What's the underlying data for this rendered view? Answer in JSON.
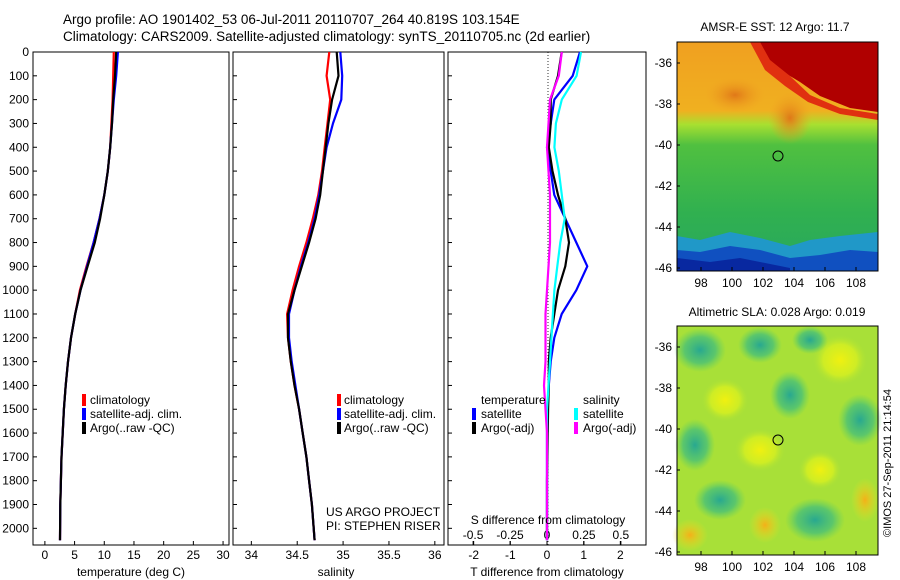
{
  "header": {
    "line1": "Argo profile: AO 1901402_53 06-Jul-2011 20110707_264 40.819S 103.154E",
    "line2": "Climatology: CARS2009. Satellite-adjusted climatology: synTS_20110705.nc (2d earlier)"
  },
  "colors": {
    "red": "#ff0000",
    "blue": "#0000ff",
    "black": "#000000",
    "cyan": "#00ffff",
    "magenta": "#ff00ff"
  },
  "panels": {
    "depth_ticks": [
      "0",
      "100",
      "200",
      "300",
      "400",
      "500",
      "600",
      "700",
      "800",
      "900",
      "1000",
      "1100",
      "1200",
      "1300",
      "1400",
      "1500",
      "1600",
      "1700",
      "1800",
      "1900",
      "2000"
    ],
    "temperature": {
      "xlabel": "temperature (deg C)",
      "xticks": [
        "0",
        "5",
        "10",
        "15",
        "20",
        "25",
        "30"
      ],
      "legend": [
        "climatology",
        "satellite-adj. clim.",
        "Argo(..raw -QC)"
      ]
    },
    "salinity": {
      "xlabel": "salinity",
      "xticks": [
        "34",
        "34.5",
        "35",
        "35.5",
        "36"
      ],
      "legend": [
        "climatology",
        "satellite-adj. clim.",
        "Argo(..raw -QC)"
      ],
      "note1": "US ARGO PROJECT",
      "note2": "PI: STEPHEN RISER"
    },
    "difference": {
      "xlabel": "T difference from climatology",
      "top_label": "S difference from climatology",
      "xticks": [
        "-2",
        "-1",
        "0",
        "1",
        "2"
      ],
      "top_ticks": [
        "-0.5",
        "-0.25",
        "0",
        "0.25",
        "0.5"
      ],
      "legend_head_t": "temperature",
      "legend_head_s": "salinity",
      "legend_t": [
        "satellite",
        "Argo(-adj)"
      ],
      "legend_s": [
        "satellite",
        "Argo(-adj)"
      ]
    }
  },
  "maps": {
    "sst_title": "AMSR-E SST: 12 Argo: 11.7",
    "sla_title": "Altimetric SLA: 0.028 Argo: 0.019",
    "lat_ticks": [
      "-36",
      "-38",
      "-40",
      "-42",
      "-44",
      "-46"
    ],
    "lon_ticks": [
      "98",
      "100",
      "102",
      "104",
      "106",
      "108"
    ],
    "credit": "©IMOS 27-Sep-2011 21:14:54"
  },
  "chart_data": [
    {
      "type": "line",
      "title": "",
      "xlabel": "temperature (deg C)",
      "ylabel": "",
      "xlim": [
        -2,
        31
      ],
      "ylim": [
        2070,
        0
      ],
      "y_reversed": true,
      "series": [
        {
          "name": "climatology",
          "color": "red",
          "x": [
            11.6,
            11.5,
            11.4,
            11.2,
            11.0,
            10.6,
            10.0,
            9.2,
            8.2,
            7.0,
            5.9,
            5.1,
            4.4,
            3.9,
            3.5,
            3.2,
            3.0,
            2.8,
            2.7,
            2.6,
            2.55
          ],
          "y": [
            0,
            100,
            200,
            300,
            400,
            500,
            600,
            700,
            800,
            900,
            1000,
            1100,
            1200,
            1300,
            1400,
            1500,
            1600,
            1700,
            1800,
            1900,
            2050
          ]
        },
        {
          "name": "satellite-adj. clim.",
          "color": "blue",
          "x": [
            12.3,
            12.0,
            11.6,
            11.3,
            11.0,
            10.6,
            10.0,
            9.2,
            8.2,
            7.1,
            6.0,
            5.1,
            4.4,
            3.9,
            3.5,
            3.2,
            3.0,
            2.8,
            2.7,
            2.6,
            2.55
          ],
          "y": [
            0,
            100,
            200,
            300,
            400,
            500,
            600,
            700,
            800,
            900,
            1000,
            1100,
            1200,
            1300,
            1400,
            1500,
            1600,
            1700,
            1800,
            1900,
            2050
          ]
        },
        {
          "name": "Argo(..raw -QC)",
          "color": "black",
          "x": [
            12.0,
            11.8,
            11.5,
            11.3,
            11.0,
            10.6,
            10.0,
            9.3,
            8.4,
            7.2,
            6.0,
            5.1,
            4.4,
            3.9,
            3.5,
            3.2,
            3.0,
            2.8,
            2.7,
            2.6,
            2.55
          ],
          "y": [
            0,
            100,
            200,
            300,
            400,
            500,
            600,
            700,
            800,
            900,
            1000,
            1100,
            1200,
            1300,
            1400,
            1500,
            1600,
            1700,
            1800,
            1900,
            2050
          ]
        }
      ]
    },
    {
      "type": "line",
      "title": "",
      "xlabel": "salinity",
      "ylabel": "",
      "xlim": [
        33.8,
        36.1
      ],
      "ylim": [
        2070,
        0
      ],
      "y_reversed": true,
      "series": [
        {
          "name": "climatology",
          "color": "red",
          "x": [
            34.85,
            34.82,
            34.86,
            34.83,
            34.8,
            34.77,
            34.73,
            34.67,
            34.6,
            34.52,
            34.45,
            34.39,
            34.4,
            34.43,
            34.47,
            34.52,
            34.56,
            34.6,
            34.63,
            34.66,
            34.69
          ],
          "y": [
            0,
            100,
            200,
            300,
            400,
            500,
            600,
            700,
            800,
            900,
            1000,
            1100,
            1200,
            1300,
            1400,
            1500,
            1600,
            1700,
            1800,
            1900,
            2050
          ]
        },
        {
          "name": "satellite-adj. clim.",
          "color": "blue",
          "x": [
            34.97,
            34.99,
            34.98,
            34.89,
            34.82,
            34.78,
            34.74,
            34.69,
            34.62,
            34.54,
            34.47,
            34.41,
            34.41,
            34.44,
            34.48,
            34.52,
            34.56,
            34.6,
            34.63,
            34.66,
            34.69
          ],
          "y": [
            0,
            100,
            200,
            300,
            400,
            500,
            600,
            700,
            800,
            900,
            1000,
            1100,
            1200,
            1300,
            1400,
            1500,
            1600,
            1700,
            1800,
            1900,
            2050
          ]
        },
        {
          "name": "Argo(..raw -QC)",
          "color": "black",
          "x": [
            34.93,
            34.95,
            34.88,
            34.84,
            34.81,
            34.78,
            34.75,
            34.7,
            34.63,
            34.55,
            34.47,
            34.4,
            34.4,
            34.43,
            34.47,
            34.52,
            34.56,
            34.6,
            34.63,
            34.66,
            34.69
          ],
          "y": [
            0,
            100,
            200,
            300,
            400,
            500,
            600,
            700,
            800,
            900,
            1000,
            1100,
            1200,
            1300,
            1400,
            1500,
            1600,
            1700,
            1800,
            1900,
            2050
          ]
        }
      ]
    },
    {
      "type": "line",
      "title": "",
      "xlabel": "T difference from climatology",
      "ylabel": "",
      "xlim": [
        -2.7,
        2.7
      ],
      "ylim": [
        2070,
        0
      ],
      "y_reversed": true,
      "series": [
        {
          "name": "temperature satellite",
          "color": "blue",
          "x": [
            0.9,
            0.7,
            0.2,
            0.1,
            0.0,
            0.1,
            0.2,
            0.5,
            0.8,
            1.1,
            0.8,
            0.4,
            0.2,
            0.1,
            0.05,
            0.02,
            0.0,
            0.0,
            0.0,
            0.0,
            0.0
          ],
          "y": [
            0,
            100,
            200,
            300,
            400,
            500,
            600,
            700,
            800,
            900,
            1000,
            1100,
            1200,
            1300,
            1400,
            1500,
            1600,
            1700,
            1800,
            1900,
            2050
          ]
        },
        {
          "name": "temperature Argo(-adj)",
          "color": "black",
          "x": [
            0.4,
            0.3,
            0.1,
            0.1,
            0.05,
            0.15,
            0.3,
            0.5,
            0.6,
            0.5,
            0.3,
            0.2,
            0.1,
            0.05,
            0.05,
            0.03,
            0.02,
            0.01,
            0.0,
            0.0,
            0.0
          ],
          "y": [
            0,
            100,
            200,
            300,
            400,
            500,
            600,
            700,
            800,
            900,
            1000,
            1100,
            1200,
            1300,
            1400,
            1500,
            1600,
            1700,
            1800,
            1900,
            2050
          ]
        }
      ]
    },
    {
      "type": "line",
      "title": "S difference from climatology",
      "xlabel": "",
      "ylabel": "",
      "xlim": [
        -0.67,
        0.67
      ],
      "ylim": [
        2070,
        0
      ],
      "y_reversed": true,
      "series": [
        {
          "name": "salinity satellite",
          "color": "cyan",
          "x": [
            0.23,
            0.2,
            0.1,
            0.06,
            0.05,
            0.08,
            0.1,
            0.12,
            0.09,
            0.07,
            0.05,
            0.04,
            0.03,
            0.02,
            0.01,
            0.0,
            0.0,
            0.0,
            0.0,
            0.0,
            0.0
          ],
          "y": [
            0,
            100,
            200,
            300,
            400,
            500,
            600,
            700,
            800,
            900,
            1000,
            1100,
            1200,
            1300,
            1400,
            1500,
            1600,
            1700,
            1800,
            1900,
            2050
          ]
        },
        {
          "name": "salinity Argo(-adj)",
          "color": "magenta",
          "x": [
            0.1,
            0.08,
            0.02,
            0.01,
            0.0,
            0.01,
            0.02,
            0.02,
            0.02,
            0.01,
            0.0,
            -0.01,
            -0.01,
            -0.01,
            -0.02,
            -0.01,
            0.0,
            0.0,
            0.0,
            0.0,
            0.0
          ],
          "y": [
            0,
            100,
            200,
            300,
            400,
            500,
            600,
            700,
            800,
            900,
            1000,
            1100,
            1200,
            1300,
            1400,
            1500,
            1600,
            1700,
            1800,
            1900,
            2050
          ]
        }
      ]
    }
  ]
}
